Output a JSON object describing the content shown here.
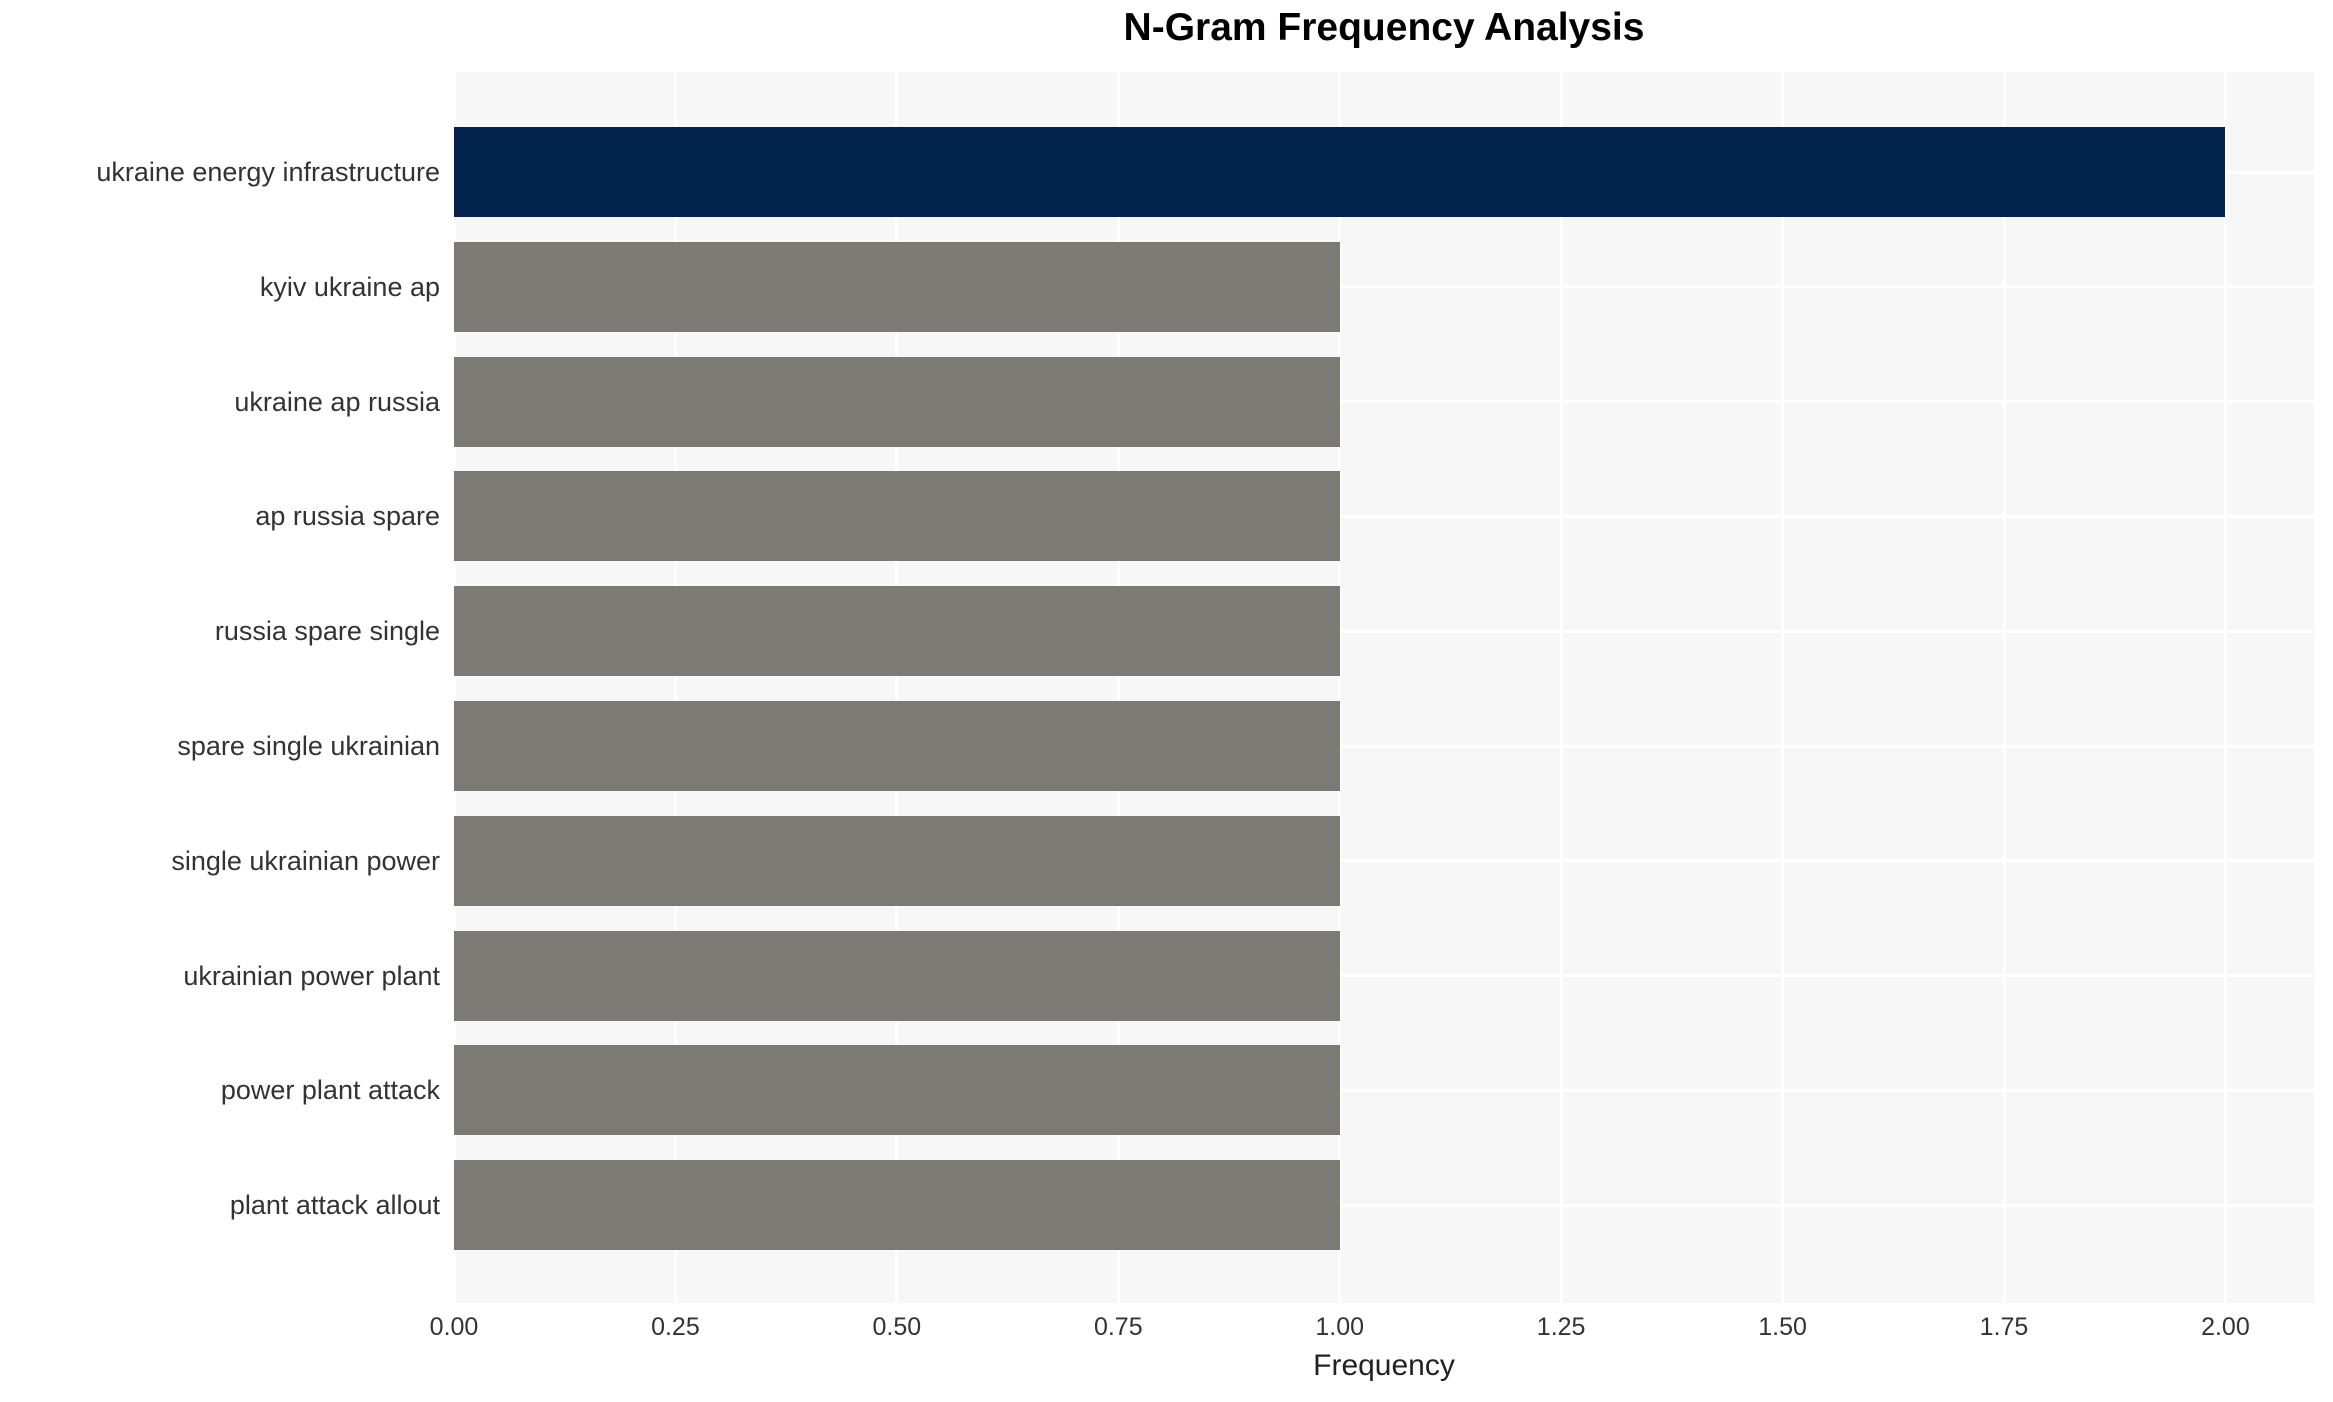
{
  "chart_data": {
    "type": "bar",
    "orientation": "horizontal",
    "title": "N-Gram Frequency Analysis",
    "xlabel": "Frequency",
    "ylabel": "",
    "categories": [
      "ukraine energy infrastructure",
      "kyiv ukraine ap",
      "ukraine ap russia",
      "ap russia spare",
      "russia spare single",
      "spare single ukrainian",
      "single ukrainian power",
      "ukrainian power plant",
      "power plant attack",
      "plant attack allout"
    ],
    "values": [
      2,
      1,
      1,
      1,
      1,
      1,
      1,
      1,
      1,
      1
    ],
    "bar_colors": [
      "#02244c",
      "#7b7a75",
      "#7b7a75",
      "#7b7a75",
      "#7b7a75",
      "#7b7a75",
      "#7b7a75",
      "#7b7a75",
      "#7b7a75",
      "#7b7a75"
    ],
    "xlim": [
      0,
      2.1
    ],
    "xticks": [
      0,
      0.25,
      0.5,
      0.75,
      1,
      1.25,
      1.5,
      1.75,
      2
    ],
    "xtick_labels": [
      "0.00",
      "0.25",
      "0.50",
      "0.75",
      "1.00",
      "1.25",
      "1.50",
      "1.75",
      "2.00"
    ],
    "grid": true,
    "legend": false,
    "colors": {
      "plot_background": "#f7f7f7",
      "figure_background": "#ffffff",
      "gridline": "#ffffff",
      "tick_text": "#333333",
      "title_text": "#000000"
    }
  }
}
